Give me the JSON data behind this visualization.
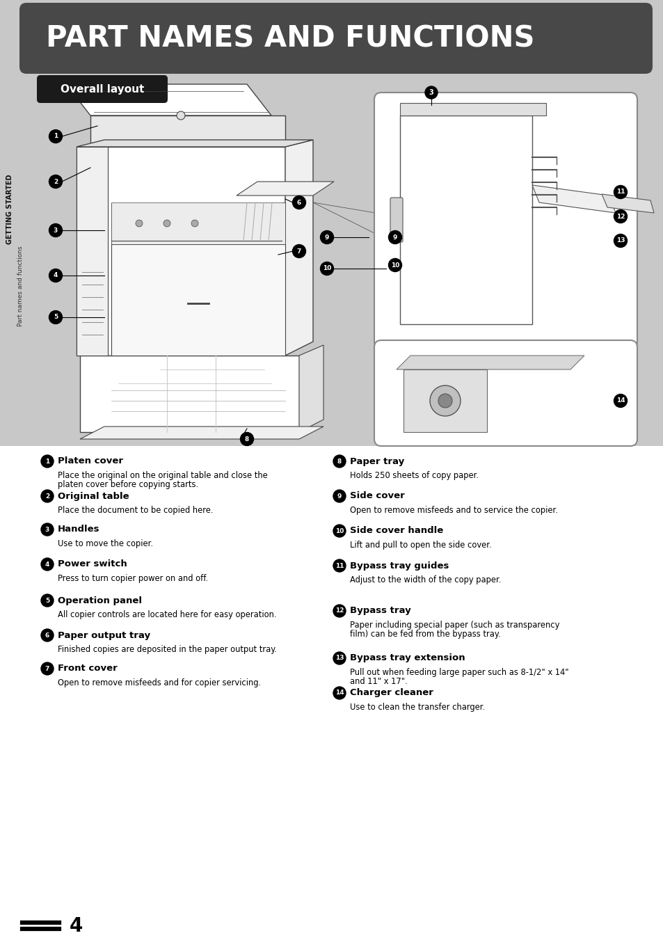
{
  "title": "PART NAMES AND FUNCTIONS",
  "title_bg_color": "#484848",
  "title_text_color": "#ffffff",
  "page_bg_color": "#c8c8c8",
  "diagram_bg_color": "#c8c8c8",
  "content_bg_color": "#ffffff",
  "section_label": "Overall layout",
  "section_label_bg": "#1a1a1a",
  "section_label_color": "#ffffff",
  "side_label": "GETTING STARTED",
  "side_sublabel": "Part names and functions",
  "page_number": "4",
  "left_items": [
    {
      "num": "1",
      "title": "Platen cover",
      "desc": "Place the original on the original table and close the\nplaten cover before copying starts."
    },
    {
      "num": "2",
      "title": "Original table",
      "desc": "Place the document to be copied here."
    },
    {
      "num": "3",
      "title": "Handles",
      "desc": "Use to move the copier."
    },
    {
      "num": "4",
      "title": "Power switch",
      "desc": "Press to turn copier power on and off."
    },
    {
      "num": "5",
      "title": "Operation panel",
      "desc": "All copier controls are located here for easy operation."
    },
    {
      "num": "6",
      "title": "Paper output tray",
      "desc": "Finished copies are deposited in the paper output tray."
    },
    {
      "num": "7",
      "title": "Front cover",
      "desc": "Open to remove misfeeds and for copier servicing."
    }
  ],
  "right_items": [
    {
      "num": "8",
      "title": "Paper tray",
      "desc": "Holds 250 sheets of copy paper."
    },
    {
      "num": "9",
      "title": "Side cover",
      "desc": "Open to remove misfeeds and to service the copier."
    },
    {
      "num": "10",
      "title": "Side cover handle",
      "desc": "Lift and pull to open the side cover."
    },
    {
      "num": "11",
      "title": "Bypass tray guides",
      "desc": "Adjust to the width of the copy paper."
    },
    {
      "num": "12",
      "title": "Bypass tray",
      "desc": "Paper including special paper (such as transparency\nfilm) can be fed from the bypass tray."
    },
    {
      "num": "13",
      "title": "Bypass tray extension",
      "desc": "Pull out when feeding large paper such as 8-1/2\" x 14\"\nand 11\" x 17\"."
    },
    {
      "num": "14",
      "title": "Charger cleaner",
      "desc": "Use to clean the transfer charger."
    }
  ]
}
